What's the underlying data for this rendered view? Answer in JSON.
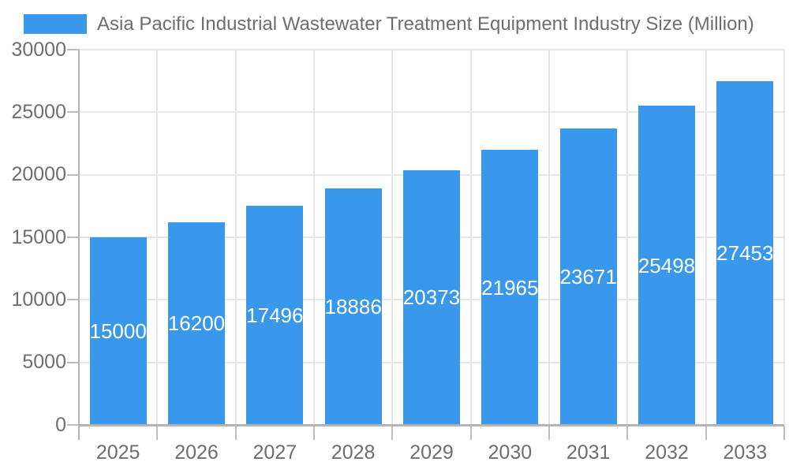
{
  "chart_data": {
    "type": "bar",
    "title": "Asia Pacific Industrial Wastewater Treatment Equipment Industry Size (Million)",
    "legend": {
      "position": "top-left",
      "label": "Asia Pacific Industrial Wastewater Treatment Equipment Industry Size (Million)"
    },
    "categories": [
      "2025",
      "2026",
      "2027",
      "2028",
      "2029",
      "2030",
      "2031",
      "2032",
      "2033"
    ],
    "values": [
      15000,
      16200,
      17496,
      18886,
      20373,
      21965,
      23671,
      25498,
      27453
    ],
    "series": [
      {
        "name": "Asia Pacific Industrial Wastewater Treatment Equipment Industry Size (Million)",
        "values": [
          15000,
          16200,
          17496,
          18886,
          20373,
          21965,
          23671,
          25498,
          27453
        ]
      }
    ],
    "xlabel": "",
    "ylabel": "",
    "ylim": [
      0,
      30000
    ],
    "ytick_step": 5000,
    "yticks": [
      0,
      5000,
      10000,
      15000,
      20000,
      25000,
      30000
    ],
    "grid": true,
    "value_label_position": "inside-center",
    "colors": {
      "bar": "#3998EC",
      "grid_line": "#E6E6E6",
      "axis_line": "#B3B3B3",
      "tick_mark": "#BDBDBD",
      "tick_text": "#6E6E6E",
      "title_text": "#6E6E6E",
      "value_label_text": "#FFFFFF",
      "background": "#FFFFFF"
    }
  }
}
